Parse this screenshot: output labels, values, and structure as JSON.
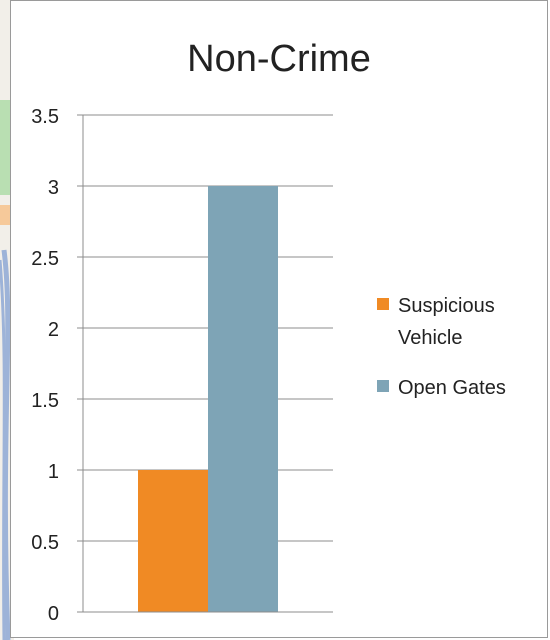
{
  "chart_data": {
    "type": "bar",
    "title": "Non-Crime",
    "xlabel": "",
    "ylabel": "",
    "categories": [
      ""
    ],
    "series": [
      {
        "name": "Suspicious Vehicle",
        "values": [
          1
        ],
        "color": "#f08a24"
      },
      {
        "name": "Open Gates",
        "values": [
          3
        ],
        "color": "#7ea4b6"
      }
    ],
    "ylim": [
      0,
      3.5
    ],
    "yticks": [
      "0",
      "0.5",
      "1",
      "1.5",
      "2",
      "2.5",
      "3",
      "3.5"
    ],
    "grid": true,
    "legend_position": "right"
  },
  "colors": {
    "gridline": "#8c8c8c",
    "map_green": "#b9dfb2",
    "map_orange": "#f6c99a",
    "map_blue": "#9db3d8"
  }
}
